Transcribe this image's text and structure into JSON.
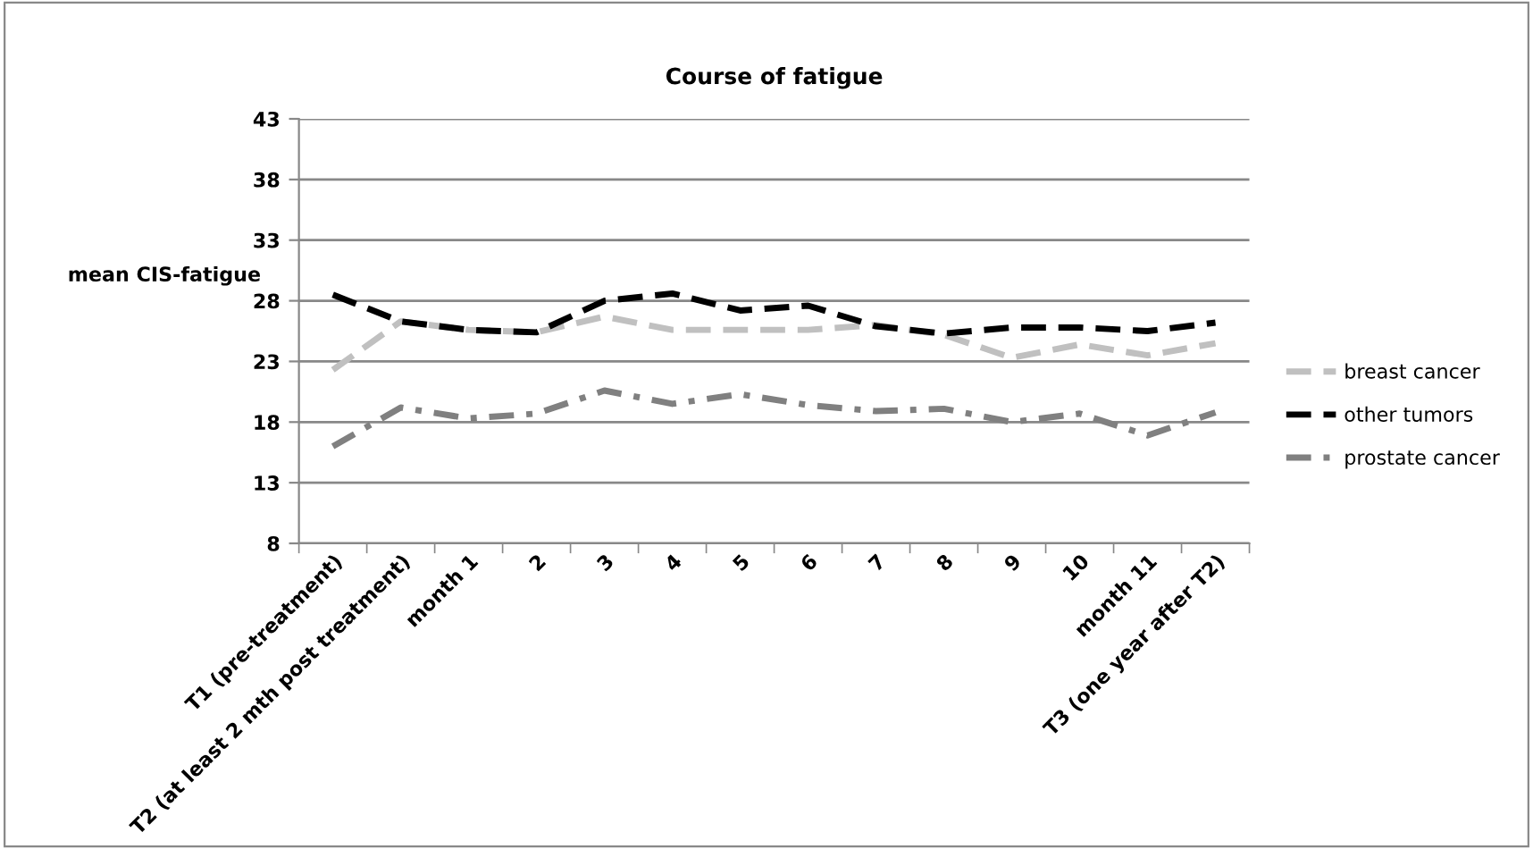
{
  "chart_data": {
    "type": "line",
    "title": "Course of fatigue",
    "ylabel": "mean CIS-fatigue",
    "categories": [
      "T1 (pre-treatment)",
      "T2 (at least 2 mth post treatment)",
      "month 1",
      "2",
      "3",
      "4",
      "5",
      "6",
      "7",
      "8",
      "9",
      "10",
      "month 11",
      "T3 (one year after T2)"
    ],
    "series": [
      {
        "name": "breast cancer",
        "color": "#c0c0c0",
        "line_style": "dashed",
        "values": [
          22.3,
          26.3,
          25.6,
          25.4,
          26.7,
          25.6,
          25.6,
          25.6,
          26.0,
          25.2,
          23.3,
          24.4,
          23.5,
          24.5
        ]
      },
      {
        "name": "other tumors",
        "color": "#000000",
        "line_style": "dashed",
        "values": [
          28.5,
          26.3,
          25.6,
          25.4,
          28.0,
          28.6,
          27.2,
          27.6,
          25.9,
          25.3,
          25.8,
          25.8,
          25.5,
          26.2
        ]
      },
      {
        "name": "prostate cancer",
        "color": "#808080",
        "line_style": "dashdot",
        "values": [
          16.0,
          19.2,
          18.3,
          18.7,
          20.6,
          19.5,
          20.3,
          19.4,
          18.9,
          19.1,
          18.0,
          18.7,
          16.9,
          18.8
        ]
      }
    ],
    "ylim": [
      8,
      43
    ],
    "yticks": [
      8,
      13,
      18,
      23,
      28,
      33,
      38,
      43
    ],
    "grid": "y",
    "legend": "right",
    "marker": "none"
  }
}
